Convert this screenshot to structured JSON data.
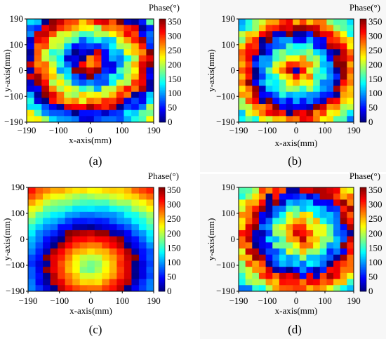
{
  "colorbar": {
    "title": "Phase(°)",
    "ticks": [
      "350",
      "300",
      "250",
      "200",
      "150",
      "100",
      "50",
      "0"
    ],
    "tick_values": [
      350,
      300,
      250,
      200,
      150,
      100,
      50,
      0
    ],
    "colormap": "jet",
    "range": [
      0,
      360
    ]
  },
  "chart_data": [
    {
      "panel": "(a)",
      "type": "heatmap",
      "xlabel": "x-axis(mm)",
      "ylabel": "y-axis(mm)",
      "xticks": [
        "−190",
        "−100",
        "0",
        "100",
        "190"
      ],
      "yticks": [
        "190",
        "100",
        "0",
        "−100",
        "−190"
      ],
      "xlim": [
        -190,
        190
      ],
      "ylim": [
        -190,
        190
      ],
      "grid": [
        17,
        17
      ],
      "pattern": {
        "kind": "rings",
        "cx": 0,
        "cy": 30,
        "center_phase": 250,
        "period_mm": 140,
        "sign": 1,
        "noise": 45
      }
    },
    {
      "panel": "(b)",
      "type": "heatmap",
      "xlabel": "x-axis(mm)",
      "ylabel": "y-axis(mm)",
      "xticks": [
        "−190",
        "−100",
        "0",
        "100",
        "190"
      ],
      "yticks": [
        "190",
        "100",
        "0",
        "−100",
        "−190"
      ],
      "xlim": [
        -190,
        190
      ],
      "ylim": [
        -190,
        190
      ],
      "grid": [
        17,
        17
      ],
      "pattern": {
        "kind": "rings",
        "cx": 0,
        "cy": 0,
        "center_phase": 355,
        "period_mm": 150,
        "sign": -1,
        "noise": 40
      }
    },
    {
      "panel": "(c)",
      "type": "heatmap",
      "xlabel": "x-axis(mm)",
      "ylabel": "y-axis(mm)",
      "xticks": [
        "−190",
        "−100",
        "0",
        "100",
        "190"
      ],
      "yticks": [
        "190",
        "100",
        "0",
        "−100",
        "−190"
      ],
      "xlim": [
        -190,
        190
      ],
      "ylim": [
        -190,
        190
      ],
      "grid": [
        17,
        17
      ],
      "pattern": {
        "kind": "rings",
        "cx": 0,
        "cy": -100,
        "center_phase": 150,
        "period_mm": 230,
        "sign": 1,
        "noise": 10
      }
    },
    {
      "panel": "(d)",
      "type": "heatmap",
      "xlabel": "x-axis(mm)",
      "ylabel": "y-axis(mm)",
      "xticks": [
        "−190",
        "−100",
        "0",
        "100",
        "190"
      ],
      "yticks": [
        "190",
        "100",
        "0",
        "−100",
        "−190"
      ],
      "xlim": [
        -190,
        190
      ],
      "ylim": [
        -190,
        190
      ],
      "grid": [
        17,
        17
      ],
      "pattern": {
        "kind": "rings",
        "cx": 20,
        "cy": 20,
        "center_phase": 355,
        "period_mm": 160,
        "sign": -1,
        "noise": 45
      }
    }
  ]
}
